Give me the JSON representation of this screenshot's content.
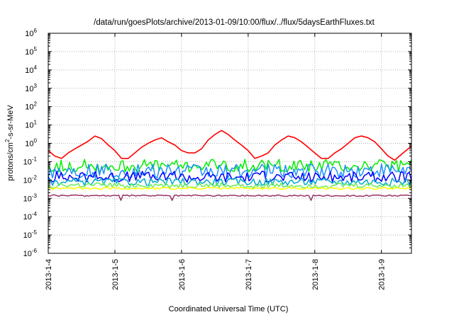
{
  "chart_data": {
    "type": "line",
    "title": "/data/run/goesPlots/archive/2013-01-09/10:00/flux/../flux/5daysEarthFluxes.txt",
    "xlabel": "Coordinated Universal Time (UTC)",
    "ylabel": {
      "prefix": "protons/cm",
      "sup": "2",
      "suffix": "-s-sr-MeV"
    },
    "yscale": "log",
    "ylim": [
      -6,
      6
    ],
    "y_ticks": [
      {
        "exp": "-6",
        "value": -6
      },
      {
        "exp": "-5",
        "value": -5
      },
      {
        "exp": "-4",
        "value": -4
      },
      {
        "exp": "-3",
        "value": -3
      },
      {
        "exp": "-2",
        "value": -2
      },
      {
        "exp": "-1",
        "value": -1
      },
      {
        "exp": "0",
        "value": 0
      },
      {
        "exp": "1",
        "value": 1
      },
      {
        "exp": "2",
        "value": 2
      },
      {
        "exp": "3",
        "value": 3
      },
      {
        "exp": "4",
        "value": 4
      },
      {
        "exp": "5",
        "value": 5
      },
      {
        "exp": "6",
        "value": 6
      }
    ],
    "y_tick_base": "10",
    "x_ticks": [
      {
        "label": "2013-1-4",
        "day": 4.0
      },
      {
        "label": "2013-1-5",
        "day": 5.0
      },
      {
        "label": "2013-1-6",
        "day": 6.0
      },
      {
        "label": "2013-1-7",
        "day": 7.0
      },
      {
        "label": "2013-1-8",
        "day": 8.0
      },
      {
        "label": "2013-1-9",
        "day": 9.0
      }
    ],
    "xlim": [
      4.0,
      9.45
    ],
    "grid": true,
    "series": [
      {
        "color": "#ff0000",
        "x": [
          4.0,
          4.1,
          4.2,
          4.3,
          4.4,
          4.5,
          4.6,
          4.7,
          4.8,
          4.9,
          5.0,
          5.1,
          5.2,
          5.3,
          5.4,
          5.5,
          5.6,
          5.7,
          5.8,
          5.9,
          6.0,
          6.1,
          6.2,
          6.3,
          6.4,
          6.5,
          6.6,
          6.7,
          6.8,
          6.9,
          7.0,
          7.1,
          7.2,
          7.3,
          7.4,
          7.5,
          7.6,
          7.7,
          7.8,
          7.9,
          8.0,
          8.1,
          8.2,
          8.3,
          8.4,
          8.5,
          8.6,
          8.7,
          8.8,
          8.9,
          9.0,
          9.1,
          9.2,
          9.3,
          9.45
        ],
        "y": [
          0.4,
          0.2,
          0.15,
          0.3,
          0.5,
          0.8,
          1.3,
          2.5,
          1.8,
          0.8,
          0.4,
          0.15,
          0.15,
          0.3,
          0.6,
          1.0,
          1.5,
          2.0,
          1.2,
          0.8,
          0.4,
          0.3,
          0.3,
          0.5,
          1.5,
          3.0,
          5.0,
          3.0,
          1.5,
          0.8,
          0.4,
          0.15,
          0.2,
          0.3,
          0.8,
          1.5,
          2.5,
          2.0,
          1.2,
          0.6,
          0.3,
          0.15,
          0.15,
          0.3,
          0.5,
          1.0,
          2.0,
          2.5,
          2.0,
          1.2,
          0.5,
          0.2,
          0.12,
          0.25,
          0.7
        ]
      },
      {
        "color": "#00ee00",
        "base": 0.06,
        "amp": 0.35
      },
      {
        "color": "#1e90ff",
        "base": 0.03,
        "amp": 0.4
      },
      {
        "color": "#0000ff",
        "base": 0.015,
        "amp": 0.3
      },
      {
        "color": "#00aacc",
        "base": 0.008,
        "amp": 0.2
      },
      {
        "color": "#66ee55",
        "base": 0.005,
        "amp": 0.15
      },
      {
        "color": "#ffff00",
        "base": 0.0035,
        "amp": 0.06
      },
      {
        "color": "#993366",
        "base": 0.0014,
        "amp": 0.04
      }
    ]
  }
}
